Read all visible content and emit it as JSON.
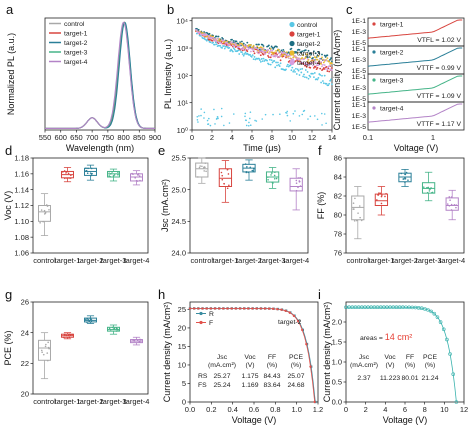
{
  "colors": {
    "control": "#a8a8a8",
    "target-1": "#d8453f",
    "target-2": "#2a7f98",
    "target-3": "#45b488",
    "target-4": "#b383c7",
    "b_control": "#59c7e5",
    "b_target-1": "#d9413c",
    "b_target-2": "#1d6e82",
    "b_target-3": "#e8b92f",
    "b_target-4": "#d69ee0",
    "R": "#3a8ca0",
    "F": "#e1524c",
    "i_curve": "#39b2ad",
    "area_value": "#e64035"
  },
  "chart_data": [
    {
      "panel": "a",
      "type": "line",
      "xlabel": "Wavelength (nm)",
      "ylabel": "Normalized PL (a.u.)",
      "xlim": [
        550,
        900
      ],
      "xticks": [
        550,
        600,
        650,
        700,
        750,
        800,
        850,
        900
      ],
      "legend": [
        "control",
        "target-1",
        "target-2",
        "target-3",
        "target-4"
      ],
      "legend_position": "top-left",
      "series": [
        {
          "name": "control",
          "peak": 803,
          "fwhm": 42
        },
        {
          "name": "target-1",
          "peak": 802,
          "fwhm": 42
        },
        {
          "name": "target-2",
          "peak": 804,
          "fwhm": 41
        },
        {
          "name": "target-3",
          "peak": 801,
          "fwhm": 42
        },
        {
          "name": "target-4",
          "peak": 800,
          "fwhm": 43
        }
      ]
    },
    {
      "panel": "b",
      "type": "scatter",
      "xlabel": "Time (μs)",
      "ylabel": "PL Intensity (a.u.)",
      "xlim": [
        0,
        14
      ],
      "xticks": [
        0,
        2,
        4,
        6,
        8,
        10,
        12,
        14
      ],
      "yscale": "log",
      "ylim": [
        1,
        10000
      ],
      "yticklabels": [
        "10⁰",
        "10¹",
        "10²",
        "10³",
        "10⁴"
      ],
      "legend": [
        "control",
        "target-1",
        "target-2",
        "target-3",
        "target-4"
      ],
      "legend_position": "top-right",
      "series": [
        {
          "name": "control",
          "tau_us": 1.6
        },
        {
          "name": "target-1",
          "tau_us": 2.3
        },
        {
          "name": "target-2",
          "tau_us": 3.4
        },
        {
          "name": "target-3",
          "tau_us": 2.8
        },
        {
          "name": "target-4",
          "tau_us": 2.5
        }
      ]
    },
    {
      "panel": "c",
      "type": "line",
      "xlabel": "Voltage (V)",
      "ylabel": "Current density (mA/cm²)",
      "xscale": "log",
      "xlim": [
        0.1,
        3
      ],
      "xticklabels": [
        "0.1",
        "1"
      ],
      "yticklabels": [
        "1E-5",
        "1E-4",
        "1E-3",
        "1E-2",
        "1E-1"
      ],
      "subplots": [
        {
          "name": "target-1",
          "label": "VTFL = 1.02 V"
        },
        {
          "name": "target-2",
          "label": "VTTF = 0.99 V"
        },
        {
          "name": "target-3",
          "label": "VTTF = 1.09 V"
        },
        {
          "name": "target-4",
          "label": "VTTF = 1.17 V"
        }
      ]
    },
    {
      "panel": "d",
      "type": "box",
      "ylabel": "Voc (V)",
      "ylim": [
        1.06,
        1.18
      ],
      "yticks": [
        "1.06",
        "1.08",
        "1.10",
        "1.12",
        "1.14",
        "1.16",
        "1.18"
      ],
      "categories": [
        "control",
        "target-1",
        "target-2",
        "target-3",
        "target-4"
      ],
      "boxes": [
        {
          "min": 1.082,
          "q1": 1.1,
          "median": 1.112,
          "q3": 1.12,
          "max": 1.135
        },
        {
          "min": 1.15,
          "q1": 1.155,
          "median": 1.159,
          "q3": 1.163,
          "max": 1.168
        },
        {
          "min": 1.152,
          "q1": 1.158,
          "median": 1.163,
          "q3": 1.167,
          "max": 1.171
        },
        {
          "min": 1.151,
          "q1": 1.156,
          "median": 1.16,
          "q3": 1.163,
          "max": 1.166
        },
        {
          "min": 1.146,
          "q1": 1.151,
          "median": 1.156,
          "q3": 1.16,
          "max": 1.164
        }
      ]
    },
    {
      "panel": "e",
      "type": "box",
      "ylabel": "Jsc (mA.cm²)",
      "ylim": [
        24.0,
        25.5
      ],
      "yticks": [
        "24.0",
        "24.5",
        "25.0",
        "25.5"
      ],
      "categories": [
        "control",
        "target-1",
        "target-2",
        "target-3",
        "target-4"
      ],
      "boxes": [
        {
          "min": 25.1,
          "q1": 25.2,
          "median": 25.33,
          "q3": 25.42,
          "max": 25.5
        },
        {
          "min": 24.8,
          "q1": 25.05,
          "median": 25.18,
          "q3": 25.33,
          "max": 25.46
        },
        {
          "min": 25.15,
          "q1": 25.28,
          "median": 25.34,
          "q3": 25.4,
          "max": 25.47
        },
        {
          "min": 25.02,
          "q1": 25.12,
          "median": 25.2,
          "q3": 25.28,
          "max": 25.35
        },
        {
          "min": 24.68,
          "q1": 24.98,
          "median": 25.05,
          "q3": 25.18,
          "max": 25.33
        }
      ]
    },
    {
      "panel": "f",
      "type": "box",
      "ylabel": "FF (%)",
      "ylim": [
        76,
        86
      ],
      "yticks": [
        "76",
        "78",
        "80",
        "82",
        "84",
        "86"
      ],
      "categories": [
        "control",
        "target-1",
        "target-2",
        "target-3",
        "target-4"
      ],
      "boxes": [
        {
          "min": 77.5,
          "q1": 79.5,
          "median": 80.8,
          "q3": 82.0,
          "max": 83.0
        },
        {
          "min": 80.0,
          "q1": 81.0,
          "median": 81.5,
          "q3": 82.2,
          "max": 83.0
        },
        {
          "min": 83.0,
          "q1": 83.5,
          "median": 84.0,
          "q3": 84.4,
          "max": 84.8
        },
        {
          "min": 81.5,
          "q1": 82.3,
          "median": 82.8,
          "q3": 83.4,
          "max": 84.5
        },
        {
          "min": 79.5,
          "q1": 80.5,
          "median": 81.0,
          "q3": 81.8,
          "max": 82.6
        }
      ]
    },
    {
      "panel": "g",
      "type": "box",
      "ylabel": "PCE (%)",
      "ylim": [
        20,
        26
      ],
      "yticks": [
        "20",
        "22",
        "24",
        "26"
      ],
      "categories": [
        "control",
        "target-1",
        "target-2",
        "target-3",
        "target-4"
      ],
      "boxes": [
        {
          "min": 21.0,
          "q1": 22.2,
          "median": 23.0,
          "q3": 23.5,
          "max": 24.0
        },
        {
          "min": 23.6,
          "q1": 23.7,
          "median": 23.8,
          "q3": 23.9,
          "max": 24.0
        },
        {
          "min": 24.6,
          "q1": 24.7,
          "median": 24.8,
          "q3": 24.95,
          "max": 25.1
        },
        {
          "min": 23.9,
          "q1": 24.1,
          "median": 24.2,
          "q3": 24.35,
          "max": 24.5
        },
        {
          "min": 23.2,
          "q1": 23.35,
          "median": 23.45,
          "q3": 23.55,
          "max": 23.7
        }
      ]
    },
    {
      "panel": "h",
      "type": "line",
      "xlabel": "Voltage (V)",
      "ylabel": "Current density (mA/cm²)",
      "xlim": [
        0,
        1.2
      ],
      "xticks": [
        "0.0",
        "0.2",
        "0.4",
        "0.6",
        "0.8",
        "1.0",
        "1.2"
      ],
      "ylim": [
        0,
        25
      ],
      "yticks": [
        "0",
        "5",
        "10",
        "15",
        "20",
        "25"
      ],
      "annotation": "target-2",
      "legend": [
        "R",
        "F"
      ],
      "legend_position": "top-left",
      "series": [
        {
          "name": "R",
          "jsc": 25.27,
          "voc": 1.175
        },
        {
          "name": "F",
          "jsc": 25.24,
          "voc": 1.169
        }
      ],
      "table": {
        "headers": [
          [
            "Jsc",
            "(mA.cm²)"
          ],
          [
            "Voc",
            "(V)"
          ],
          [
            "FF",
            "(%)"
          ],
          [
            "PCE",
            "(%)"
          ]
        ],
        "rows": [
          [
            "RS",
            "25.27",
            "1.175",
            "84.43",
            "25.07"
          ],
          [
            "FS",
            "25.24",
            "1.169",
            "83.64",
            "24.68"
          ]
        ]
      }
    },
    {
      "panel": "i",
      "type": "line",
      "xlabel": "Voltage (V)",
      "ylabel": "Current density (mA/cm²)",
      "xlim": [
        0,
        12
      ],
      "xticks": [
        "0",
        "2",
        "4",
        "6",
        "8",
        "10",
        "12"
      ],
      "yticks": [
        "0.0",
        "0.5",
        "1.0",
        "1.5",
        "2.0"
      ],
      "area_label": "areas =",
      "area_value": "14 cm²",
      "series": [
        {
          "name": "curve",
          "jsc": 2.37,
          "voc": 11.223
        }
      ],
      "table": {
        "headers": [
          [
            "Jsc",
            "(mA.cm²)"
          ],
          [
            "Voc",
            "(V)"
          ],
          [
            "FF",
            "(%)"
          ],
          [
            "PCE",
            "(%)"
          ]
        ],
        "row": [
          "2.37",
          "11.223",
          "80.01",
          "21.24"
        ]
      }
    }
  ]
}
